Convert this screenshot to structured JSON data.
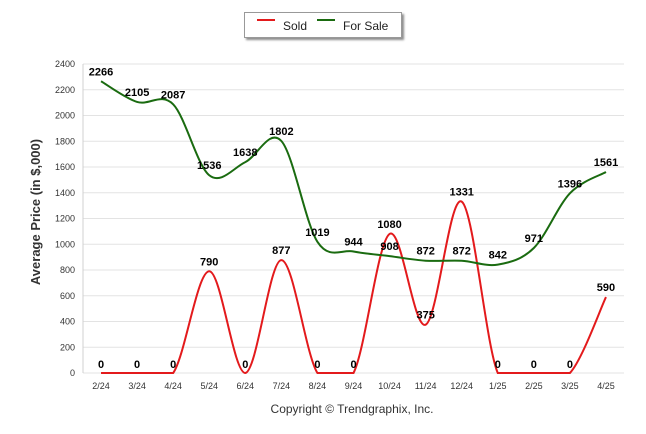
{
  "chart_data": {
    "type": "line",
    "categories": [
      "2/24",
      "3/24",
      "4/24",
      "5/24",
      "6/24",
      "7/24",
      "8/24",
      "9/24",
      "10/24",
      "11/24",
      "12/24",
      "1/25",
      "2/25",
      "3/25",
      "4/25"
    ],
    "series": [
      {
        "name": "Sold",
        "color": "#e31a1c",
        "values": [
          0,
          0,
          0,
          790,
          0,
          877,
          0,
          0,
          1080,
          375,
          1331,
          0,
          0,
          0,
          590
        ]
      },
      {
        "name": "For Sale",
        "color": "#1a6b10",
        "values": [
          2266,
          2105,
          2087,
          1536,
          1638,
          1802,
          1019,
          944,
          908,
          872,
          872,
          842,
          971,
          1396,
          1561
        ]
      }
    ],
    "ylabel": "Average Price (in $,000)",
    "xlabel": "",
    "ylim": [
      0,
      2400
    ],
    "yticks": [
      0,
      200,
      400,
      600,
      800,
      1000,
      1200,
      1400,
      1600,
      1800,
      2000,
      2200,
      2400
    ],
    "grid": true,
    "legend": "top-center"
  },
  "legend": {
    "sold": "Sold",
    "for_sale": "For Sale"
  },
  "footer": {
    "copyright": "Copyright © Trendgraphix, Inc."
  }
}
